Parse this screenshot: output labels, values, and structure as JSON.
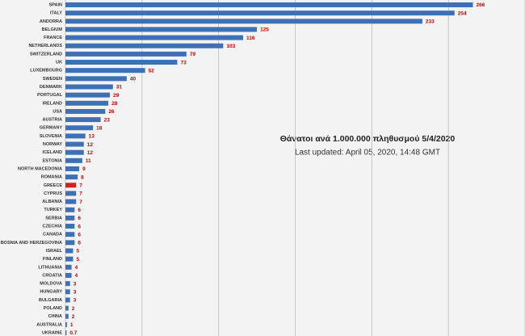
{
  "chart_data": {
    "type": "barh",
    "annotations": [
      "Θάνατοι ανά 1.000.000 πληθυσμού 5/4/2020",
      "Last updated: April 05, 2020, 14:48 GMT"
    ],
    "categories": [
      "SPAIN",
      "ITALY",
      "ANDORRA",
      "BELGIUM",
      "FRANCE",
      "NETHERLANDS",
      "SWITZERLAND",
      "UK",
      "LUXEMBOURG",
      "SWEDEN",
      "DENMARK",
      "PORTUGAL",
      "IRELAND",
      "USA",
      "AUSTRIA",
      "GERMANY",
      "SLOVENIA",
      "NORWAY",
      "ICELAND",
      "ESTONIA",
      "NORTH MACEDONIA",
      "ROMANIA",
      "GREECE",
      "CYPRUS",
      "ALBANIA",
      "TURKEY",
      "SERBIA",
      "CZECHIA",
      "CANADA",
      "BOSNIA AND HERZEGOVINA",
      "ISRAEL",
      "FINLAND",
      "LITHUANIA",
      "CROATIA",
      "MOLDOVA",
      "HUNGARY",
      "BULGARIA",
      "POLAND",
      "CHINA",
      "AUSTRALIA",
      "UKRAINE"
    ],
    "values": [
      266,
      254,
      233,
      125,
      116,
      103,
      79,
      73,
      52,
      40,
      31,
      29,
      28,
      26,
      23,
      18,
      13,
      12,
      12,
      11,
      9,
      8,
      7,
      7,
      7,
      6,
      6,
      6,
      6,
      6,
      5,
      5,
      4,
      4,
      3,
      3,
      3,
      2,
      2,
      1,
      0.7
    ],
    "colors": [
      "#3d70b5",
      "#3d70b5",
      "#3d70b5",
      "#3d70b5",
      "#3d70b5",
      "#3d70b5",
      "#3d70b5",
      "#3d70b5",
      "#3d70b5",
      "#3d70b5",
      "#3d70b5",
      "#3d70b5",
      "#3d70b5",
      "#3d70b5",
      "#3d70b5",
      "#3d70b5",
      "#3d70b5",
      "#3d70b5",
      "#3d70b5",
      "#3d70b5",
      "#3d70b5",
      "#3d70b5",
      "#d42020",
      "#3d70b5",
      "#3d70b5",
      "#3d70b5",
      "#3d70b5",
      "#3d70b5",
      "#3d70b5",
      "#3d70b5",
      "#3d70b5",
      "#3d70b5",
      "#3d70b5",
      "#3d70b5",
      "#3d70b5",
      "#3d70b5",
      "#3d70b5",
      "#3d70b5",
      "#3d70b5",
      "#3d70b5",
      "#3d70b5"
    ],
    "label_color": "#c00000",
    "xlim": [
      0,
      300
    ],
    "xticks": [
      0,
      50,
      100,
      150,
      200,
      250,
      300
    ],
    "grid": true
  }
}
